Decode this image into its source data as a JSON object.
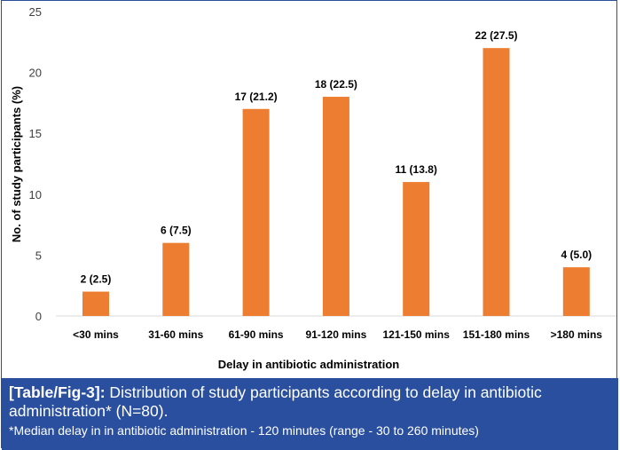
{
  "chart_data": {
    "type": "bar",
    "categories": [
      "<30 mins",
      "31-60 mins",
      "61-90 mins",
      "91-120 mins",
      "121-150 mins",
      "151-180 mins",
      ">180 mins"
    ],
    "values": [
      2,
      6,
      17,
      18,
      11,
      22,
      4
    ],
    "data_labels": [
      "2 (2.5)",
      "6 (7.5)",
      "17 (21.2)",
      "18 (22.5)",
      "11 (13.8)",
      "22 (27.5)",
      "4 (5.0)"
    ],
    "title": "",
    "xlabel": "Delay in antibiotic administration",
    "ylabel": "No. of study participants (%)",
    "ylim": [
      0,
      25
    ],
    "yticks": [
      0,
      5,
      10,
      15,
      20,
      25
    ],
    "grid": false,
    "bar_color": "#ed7d31"
  },
  "caption": {
    "label": "[Table/Fig-3]:",
    "text": " Distribution of study participants according to delay in antibiotic administration* (N=80).",
    "footnote": "*Median delay in in antibiotic administration - 120 minutes (range - 30 to 260 minutes)",
    "background": "#2a4f9e"
  }
}
